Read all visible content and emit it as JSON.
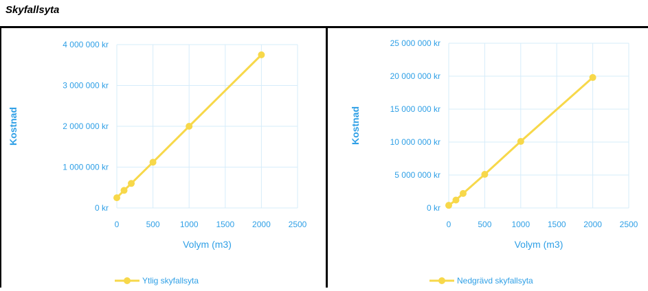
{
  "section": {
    "title": "Skyfallsyta"
  },
  "colors": {
    "series": "#f7d84a",
    "axis_text": "#2e9fe6",
    "grid": "#d6ecfa"
  },
  "chart_data": [
    {
      "type": "line",
      "title": "",
      "xlabel": "Volym (m3)",
      "ylabel": "Kostnad",
      "xlim": [
        0,
        2500
      ],
      "ylim": [
        0,
        4000000
      ],
      "x_ticks": [
        0,
        500,
        1000,
        1500,
        2000,
        2500
      ],
      "y_ticks": [
        0,
        1000000,
        2000000,
        3000000,
        4000000
      ],
      "x_tick_labels": [
        "0",
        "500",
        "1000",
        "1500",
        "2000",
        "2500"
      ],
      "y_tick_labels": [
        "0 kr",
        "1 000 000 kr",
        "2 000 000 kr",
        "3 000 000 kr",
        "4 000 000 kr"
      ],
      "grid": true,
      "legend_position": "bottom",
      "series": [
        {
          "name": "Ytlig skyfallsyta",
          "x": [
            0,
            100,
            200,
            500,
            1000,
            2000
          ],
          "y": [
            250000,
            430000,
            600000,
            1120000,
            2000000,
            3750000
          ]
        }
      ]
    },
    {
      "type": "line",
      "title": "",
      "xlabel": "Volym (m3)",
      "ylabel": "Kostnad",
      "xlim": [
        0,
        2500
      ],
      "ylim": [
        0,
        25000000
      ],
      "x_ticks": [
        0,
        500,
        1000,
        1500,
        2000,
        2500
      ],
      "y_ticks": [
        0,
        5000000,
        10000000,
        15000000,
        20000000,
        25000000
      ],
      "x_tick_labels": [
        "0",
        "500",
        "1000",
        "1500",
        "2000",
        "2500"
      ],
      "y_tick_labels": [
        "0 kr",
        "5 000 000 kr",
        "10 000 000 kr",
        "15 000 000 kr",
        "20 000 000 kr",
        "25 000 000 kr"
      ],
      "grid": true,
      "legend_position": "bottom",
      "series": [
        {
          "name": "Nedgrävd skyfallsyta",
          "x": [
            0,
            100,
            200,
            500,
            1000,
            2000
          ],
          "y": [
            400000,
            1200000,
            2200000,
            5100000,
            10100000,
            19800000
          ]
        }
      ]
    }
  ]
}
